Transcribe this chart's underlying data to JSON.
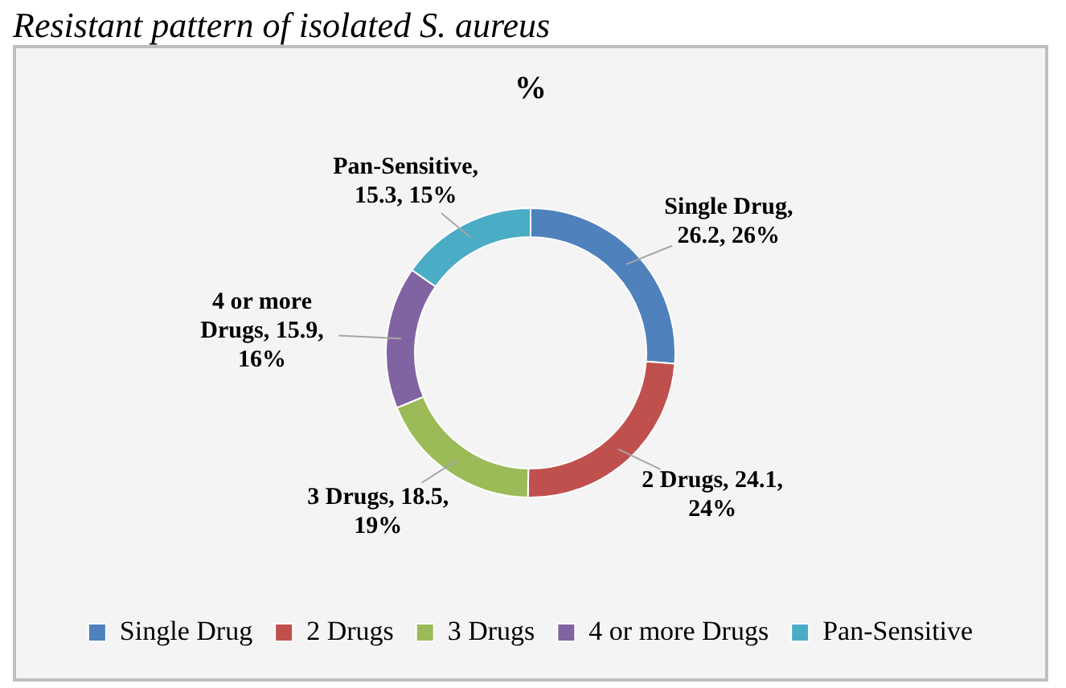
{
  "chart_data": {
    "type": "donut",
    "title": "Resistant pattern of isolated S. aureus",
    "subtitle": "%",
    "categories": [
      "Single Drug",
      "2 Drugs",
      "3 Drugs",
      "4 or more Drugs",
      "Pan-Sensitive"
    ],
    "values": [
      26.2,
      24.1,
      18.5,
      15.9,
      15.3
    ],
    "colors": [
      "#4f81bd",
      "#c0504d",
      "#9bbb59",
      "#8064a2",
      "#4bacc6"
    ],
    "value_labels": [
      "Single Drug, 26.2, 26%",
      "2 Drugs, 24.1, 24%",
      "3 Drugs, 18.5, 19%",
      "4 or more Drugs, 15.9, 16%",
      "Pan-Sensitive, 15.3, 15%"
    ],
    "legend": "bottom"
  }
}
